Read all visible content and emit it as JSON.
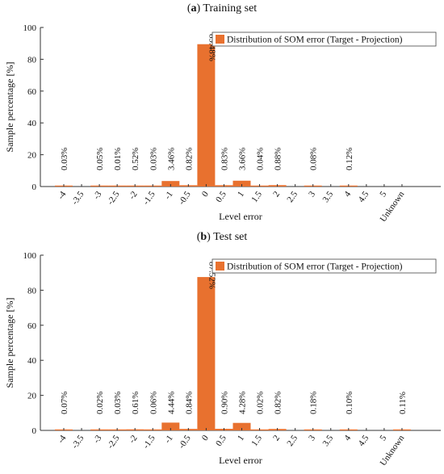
{
  "colors": {
    "bar": "#e8712f",
    "axis": "#333333",
    "text": "#111111"
  },
  "chart_data": [
    {
      "type": "bar",
      "title_letter": "a",
      "title": "Training set",
      "xlabel": "Level error",
      "ylabel": "Sample percentage [%]",
      "ylim": [
        0,
        100
      ],
      "yticks": [
        0,
        20,
        40,
        60,
        80,
        100
      ],
      "legend": {
        "label": "Distribution of SOM error (Target - Projection)",
        "position": "top-right"
      },
      "categories": [
        "-4",
        "-3.5",
        "-3",
        "-2.5",
        "-2",
        "-1.5",
        "-1",
        "-0.5",
        "0",
        "0.5",
        "1",
        "1.5",
        "2",
        "2.5",
        "3",
        "3.5",
        "4",
        "4.5",
        "5",
        "Unknown"
      ],
      "values": [
        0.03,
        0,
        0.05,
        0.01,
        0.52,
        0.03,
        3.46,
        0.82,
        89.48,
        0.83,
        3.66,
        0.04,
        0.88,
        0,
        0.08,
        0,
        0.12,
        0,
        0,
        0
      ],
      "data_labels": [
        "0.03%",
        "",
        "0.05%",
        "0.01%",
        "0.52%",
        "0.03%",
        "3.46%",
        "0.82%",
        "89.48%",
        "0.83%",
        "3.66%",
        "0.04%",
        "0.88%",
        "",
        "0.08%",
        "",
        "0.12%",
        "",
        "",
        ""
      ]
    },
    {
      "type": "bar",
      "title_letter": "b",
      "title": "Test set",
      "xlabel": "Level error",
      "ylabel": "Sample percentage [%]",
      "ylim": [
        0,
        100
      ],
      "yticks": [
        0,
        20,
        40,
        60,
        80,
        100
      ],
      "legend": {
        "label": "Distribution of SOM error (Target - Projection)",
        "position": "top-right"
      },
      "categories": [
        "-4",
        "-3.5",
        "-3",
        "-2.5",
        "-2",
        "-1.5",
        "-1",
        "-0.5",
        "0",
        "0.5",
        "1",
        "1.5",
        "2",
        "2.5",
        "3",
        "3.5",
        "4",
        "4.5",
        "5",
        "Unknown"
      ],
      "values": [
        0.07,
        0,
        0.02,
        0.03,
        0.61,
        0.06,
        4.44,
        0.84,
        87.52,
        0.9,
        4.28,
        0.02,
        0.82,
        0,
        0.18,
        0,
        0.1,
        0,
        0,
        0.11
      ],
      "data_labels": [
        "0.07%",
        "",
        "0.02%",
        "0.03%",
        "0.61%",
        "0.06%",
        "4.44%",
        "0.84%",
        "87.52%",
        "0.90%",
        "4.28%",
        "0.02%",
        "0.82%",
        "",
        "0.18%",
        "",
        "0.10%",
        "",
        "",
        "0.11%"
      ]
    }
  ]
}
